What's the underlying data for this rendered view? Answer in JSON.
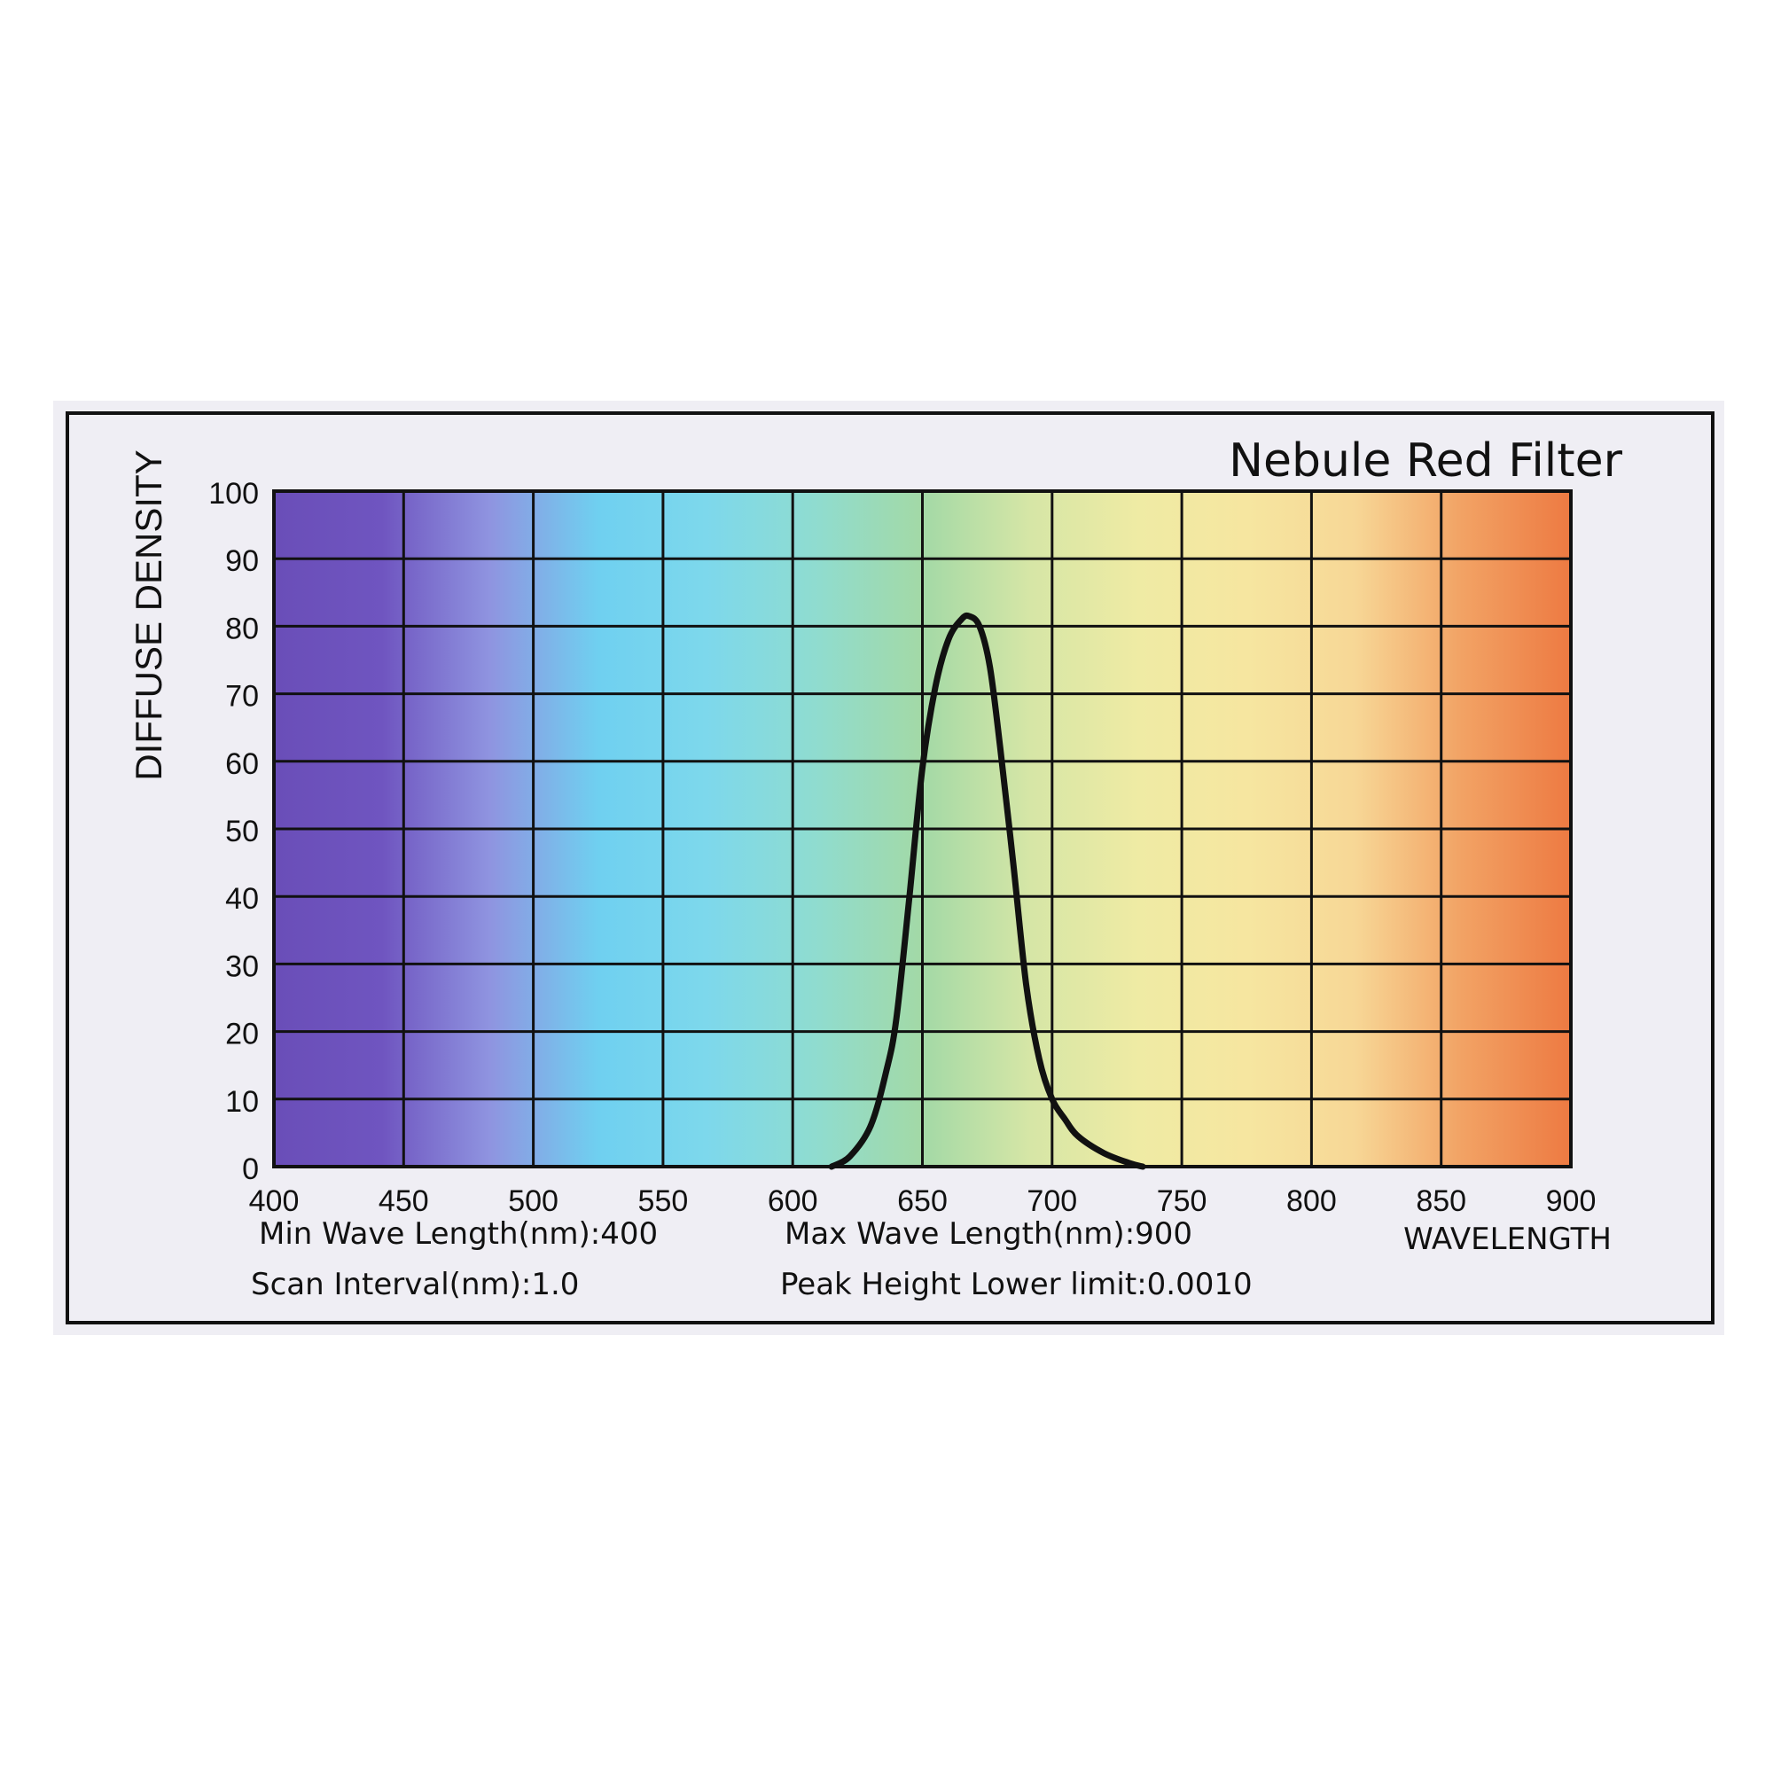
{
  "chart_data": {
    "type": "line",
    "title": "Nebule Red Filter",
    "ylabel": "DIFFUSE DENSITY",
    "xlabel": "WAVELENGTH",
    "xlim": [
      400,
      900
    ],
    "ylim": [
      0,
      100
    ],
    "x_ticks": [
      "400",
      "450",
      "500",
      "550",
      "600",
      "650",
      "700",
      "750",
      "800",
      "850",
      "900"
    ],
    "y_ticks": [
      "0",
      "10",
      "20",
      "30",
      "40",
      "50",
      "60",
      "70",
      "80",
      "90",
      "100"
    ],
    "grid": true,
    "background": "visible-spectrum gradient (violet to red)",
    "series": [
      {
        "x": [
          615,
          622,
          630,
          636,
          640,
          645,
          650,
          655,
          660,
          665,
          668,
          672,
          676,
          680,
          685,
          690,
          695,
          700,
          705,
          710,
          720,
          730,
          735
        ],
        "y": [
          0,
          1.5,
          6,
          14,
          22,
          40,
          59,
          71,
          78,
          81,
          81.5,
          80,
          74,
          62,
          45,
          27,
          16,
          10,
          7,
          4.5,
          2,
          0.5,
          0
        ],
        "color": "#111111"
      }
    ],
    "spectrum_colors": [
      "#6a4eb8",
      "#6f55c0",
      "#8f94e0",
      "#6fd0f0",
      "#7dd8ec",
      "#8fdcd0",
      "#a3d9a6",
      "#d6e6a6",
      "#efeba4",
      "#f6e6a0",
      "#f7d796",
      "#f2a264",
      "#ed7a42"
    ]
  },
  "footer": {
    "min_wave": "Min Wave Length(nm):400",
    "max_wave": "Max Wave Length(nm):900",
    "scan_interval": "Scan Interval(nm):1.0",
    "peak_height": "Peak Height Lower limit:0.0010"
  },
  "colors": {
    "frame": "#111111",
    "card": "#efeef4",
    "curve": "#111111"
  }
}
